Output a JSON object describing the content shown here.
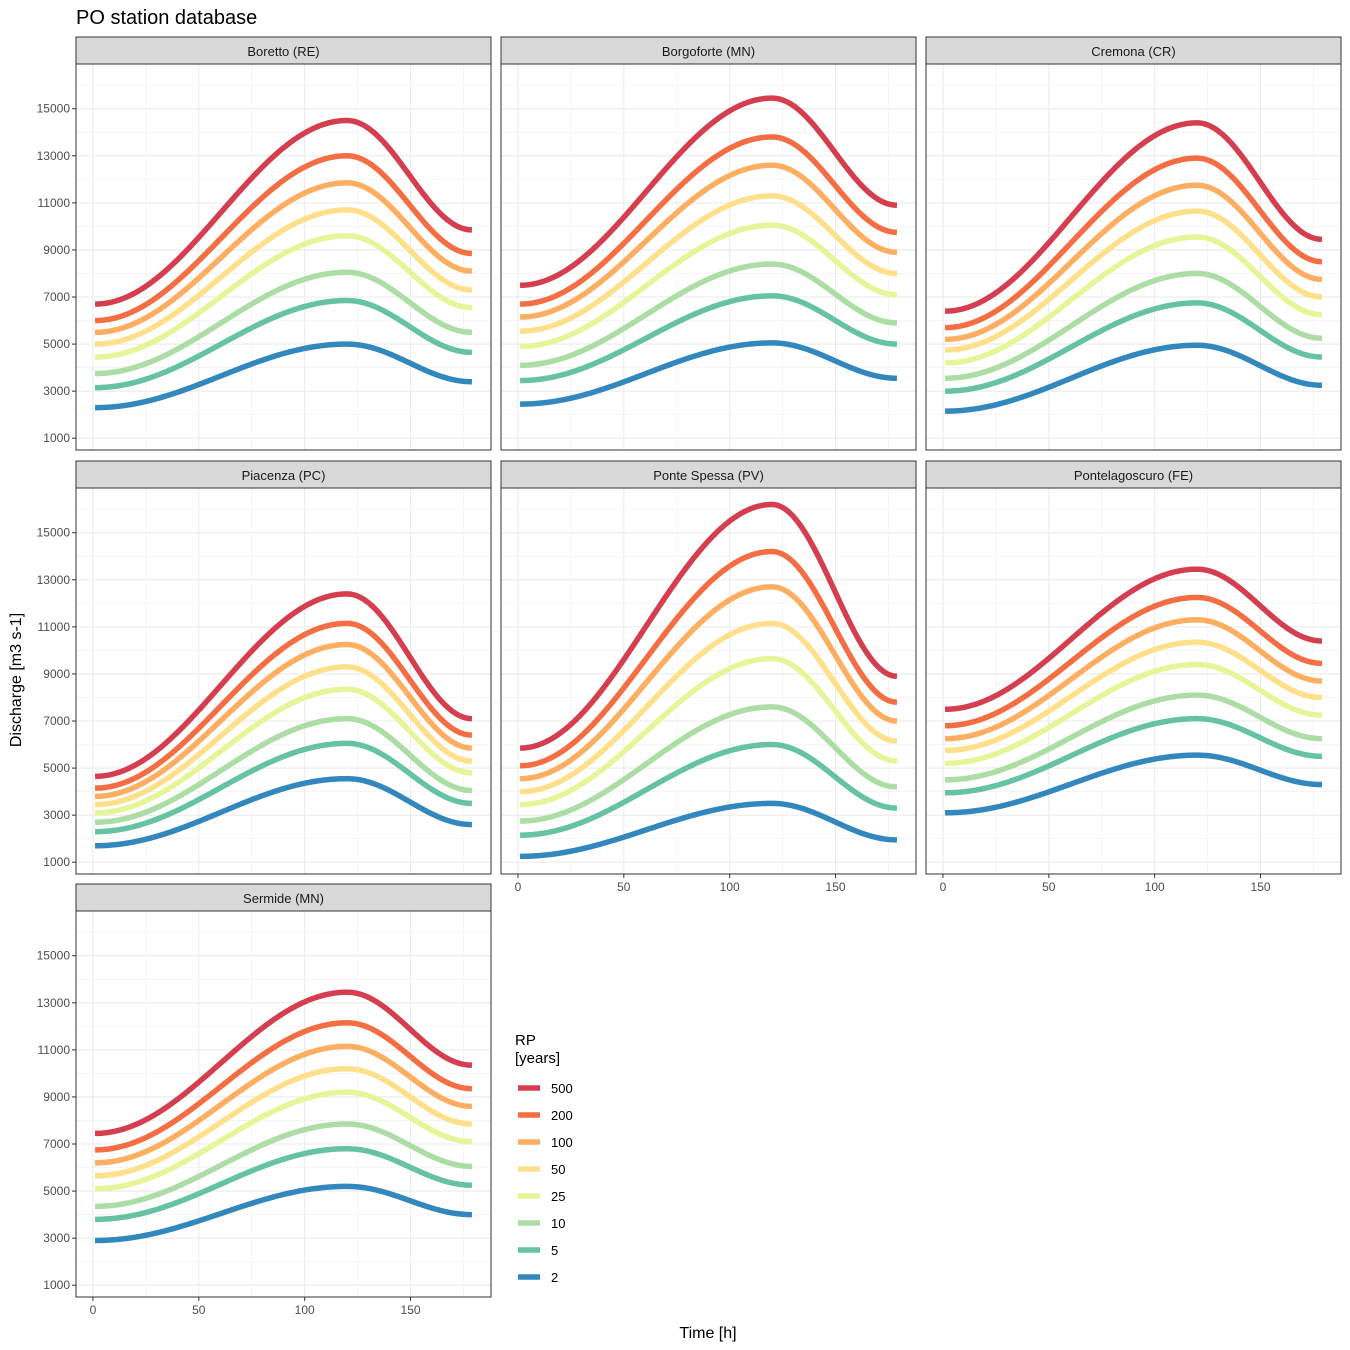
{
  "chart_data": {
    "type": "line",
    "title": "PO station database",
    "xlabel": "Time [h]",
    "ylabel": "Discharge [m3 s-1]",
    "xlim": [
      -8,
      188
    ],
    "ylim": [
      500,
      16900
    ],
    "x_ticks": [
      0,
      50,
      100,
      150
    ],
    "y_ticks": [
      1000,
      3000,
      5000,
      7000,
      9000,
      11000,
      13000,
      15000
    ],
    "grid": true,
    "legend": {
      "title_line1": "RP",
      "title_line2": "[years]",
      "position": "bottom-right",
      "entries": [
        {
          "label": "500",
          "color": "#D53E4F"
        },
        {
          "label": "200",
          "color": "#F46D43"
        },
        {
          "label": "100",
          "color": "#FDAE61"
        },
        {
          "label": "50",
          "color": "#FEE08B"
        },
        {
          "label": "25",
          "color": "#E6F598"
        },
        {
          "label": "10",
          "color": "#ABDDA4"
        },
        {
          "label": "5",
          "color": "#66C2A5"
        },
        {
          "label": "2",
          "color": "#3288BD"
        }
      ]
    },
    "peak_time": 120,
    "x_range": [
      1,
      179
    ],
    "panels": [
      {
        "name": "Boretto (RE)",
        "series": [
          {
            "rp": "500",
            "start": 6700,
            "peak": 14500,
            "end": 9850
          },
          {
            "rp": "200",
            "start": 6000,
            "peak": 13000,
            "end": 8850
          },
          {
            "rp": "100",
            "start": 5500,
            "peak": 11850,
            "end": 8100
          },
          {
            "rp": "50",
            "start": 5000,
            "peak": 10700,
            "end": 7300
          },
          {
            "rp": "25",
            "start": 4450,
            "peak": 9600,
            "end": 6550
          },
          {
            "rp": "10",
            "start": 3750,
            "peak": 8050,
            "end": 5500
          },
          {
            "rp": "5",
            "start": 3150,
            "peak": 6850,
            "end": 4650
          },
          {
            "rp": "2",
            "start": 2300,
            "peak": 5000,
            "end": 3400
          }
        ]
      },
      {
        "name": "Borgoforte (MN)",
        "series": [
          {
            "rp": "500",
            "start": 7500,
            "peak": 15450,
            "end": 10900
          },
          {
            "rp": "200",
            "start": 6700,
            "peak": 13800,
            "end": 9750
          },
          {
            "rp": "100",
            "start": 6150,
            "peak": 12600,
            "end": 8900
          },
          {
            "rp": "50",
            "start": 5550,
            "peak": 11300,
            "end": 8000
          },
          {
            "rp": "25",
            "start": 4900,
            "peak": 10050,
            "end": 7100
          },
          {
            "rp": "10",
            "start": 4100,
            "peak": 8400,
            "end": 5900
          },
          {
            "rp": "5",
            "start": 3450,
            "peak": 7050,
            "end": 5000
          },
          {
            "rp": "2",
            "start": 2450,
            "peak": 5050,
            "end": 3550
          }
        ]
      },
      {
        "name": "Cremona (CR)",
        "series": [
          {
            "rp": "500",
            "start": 6400,
            "peak": 14400,
            "end": 9450
          },
          {
            "rp": "200",
            "start": 5700,
            "peak": 12900,
            "end": 8500
          },
          {
            "rp": "100",
            "start": 5200,
            "peak": 11750,
            "end": 7750
          },
          {
            "rp": "50",
            "start": 4750,
            "peak": 10650,
            "end": 7000
          },
          {
            "rp": "25",
            "start": 4200,
            "peak": 9550,
            "end": 6250
          },
          {
            "rp": "10",
            "start": 3550,
            "peak": 8000,
            "end": 5250
          },
          {
            "rp": "5",
            "start": 3000,
            "peak": 6750,
            "end": 4450
          },
          {
            "rp": "2",
            "start": 2150,
            "peak": 4950,
            "end": 3250
          }
        ]
      },
      {
        "name": "Piacenza (PC)",
        "series": [
          {
            "rp": "500",
            "start": 4650,
            "peak": 12400,
            "end": 7100
          },
          {
            "rp": "200",
            "start": 4150,
            "peak": 11150,
            "end": 6400
          },
          {
            "rp": "100",
            "start": 3800,
            "peak": 10250,
            "end": 5850
          },
          {
            "rp": "50",
            "start": 3450,
            "peak": 9300,
            "end": 5300
          },
          {
            "rp": "25",
            "start": 3100,
            "peak": 8350,
            "end": 4800
          },
          {
            "rp": "10",
            "start": 2700,
            "peak": 7100,
            "end": 4050
          },
          {
            "rp": "5",
            "start": 2300,
            "peak": 6050,
            "end": 3500
          },
          {
            "rp": "2",
            "start": 1700,
            "peak": 4550,
            "end": 2600
          }
        ]
      },
      {
        "name": "Ponte Spessa (PV)",
        "series": [
          {
            "rp": "500",
            "start": 5850,
            "peak": 16200,
            "end": 8900
          },
          {
            "rp": "200",
            "start": 5100,
            "peak": 14200,
            "end": 7800
          },
          {
            "rp": "100",
            "start": 4550,
            "peak": 12700,
            "end": 7000
          },
          {
            "rp": "50",
            "start": 4000,
            "peak": 11150,
            "end": 6150
          },
          {
            "rp": "25",
            "start": 3450,
            "peak": 9650,
            "end": 5300
          },
          {
            "rp": "10",
            "start": 2750,
            "peak": 7600,
            "end": 4200
          },
          {
            "rp": "5",
            "start": 2150,
            "peak": 6000,
            "end": 3300
          },
          {
            "rp": "2",
            "start": 1250,
            "peak": 3500,
            "end": 1950
          }
        ]
      },
      {
        "name": "Pontelagoscuro (FE)",
        "series": [
          {
            "rp": "500",
            "start": 7500,
            "peak": 13450,
            "end": 10400
          },
          {
            "rp": "200",
            "start": 6800,
            "peak": 12250,
            "end": 9450
          },
          {
            "rp": "100",
            "start": 6250,
            "peak": 11300,
            "end": 8700
          },
          {
            "rp": "50",
            "start": 5750,
            "peak": 10350,
            "end": 8000
          },
          {
            "rp": "25",
            "start": 5200,
            "peak": 9400,
            "end": 7250
          },
          {
            "rp": "10",
            "start": 4500,
            "peak": 8100,
            "end": 6250
          },
          {
            "rp": "5",
            "start": 3950,
            "peak": 7100,
            "end": 5500
          },
          {
            "rp": "2",
            "start": 3100,
            "peak": 5550,
            "end": 4300
          }
        ]
      },
      {
        "name": "Sermide (MN)",
        "series": [
          {
            "rp": "500",
            "start": 7450,
            "peak": 13450,
            "end": 10350
          },
          {
            "rp": "200",
            "start": 6750,
            "peak": 12150,
            "end": 9350
          },
          {
            "rp": "100",
            "start": 6200,
            "peak": 11150,
            "end": 8600
          },
          {
            "rp": "50",
            "start": 5650,
            "peak": 10200,
            "end": 7850
          },
          {
            "rp": "25",
            "start": 5100,
            "peak": 9200,
            "end": 7100
          },
          {
            "rp": "10",
            "start": 4350,
            "peak": 7850,
            "end": 6050
          },
          {
            "rp": "5",
            "start": 3800,
            "peak": 6800,
            "end": 5250
          },
          {
            "rp": "2",
            "start": 2900,
            "peak": 5200,
            "end": 4000
          }
        ]
      }
    ]
  }
}
